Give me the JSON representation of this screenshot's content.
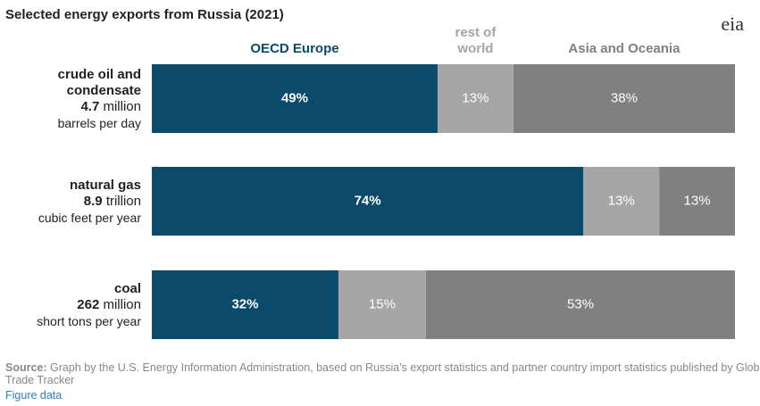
{
  "chart_data": {
    "type": "stacked_bar_horizontal",
    "title": "Selected energy exports from Russia (2021)",
    "logo": "eia",
    "categories": [
      "crude oil and condensate",
      "natural gas",
      "coal"
    ],
    "amounts": [
      4.7,
      8.9,
      262
    ],
    "amount_units": [
      "million",
      "trillion",
      "million"
    ],
    "per_units": [
      "barrels per day",
      "cubic feet per year",
      "short tons per year"
    ],
    "series": [
      {
        "name": "OECD Europe",
        "color": "#0b4a6b",
        "legend_color": "#0b4a6b",
        "values": [
          49,
          74,
          32
        ],
        "value_labels": [
          "49%",
          "74%",
          "32%"
        ]
      },
      {
        "name": "rest of world",
        "color": "#a6a6a6",
        "legend_color": "#a6a6a6",
        "values": [
          13,
          13,
          15
        ],
        "value_labels": [
          "13%",
          "13%",
          "15%"
        ]
      },
      {
        "name": "Asia and Oceania",
        "color": "#808080",
        "legend_color": "#808080",
        "values": [
          38,
          13,
          53
        ],
        "value_labels": [
          "38%",
          "13%",
          "53%"
        ]
      }
    ],
    "xlim": [
      0,
      100
    ],
    "source_label": "Source:",
    "source": "Graph by the U.S. Energy Information Administration, based on Russia's export statistics and partner country import statistics published by Global Trade Tracker",
    "link": "Figure data"
  }
}
